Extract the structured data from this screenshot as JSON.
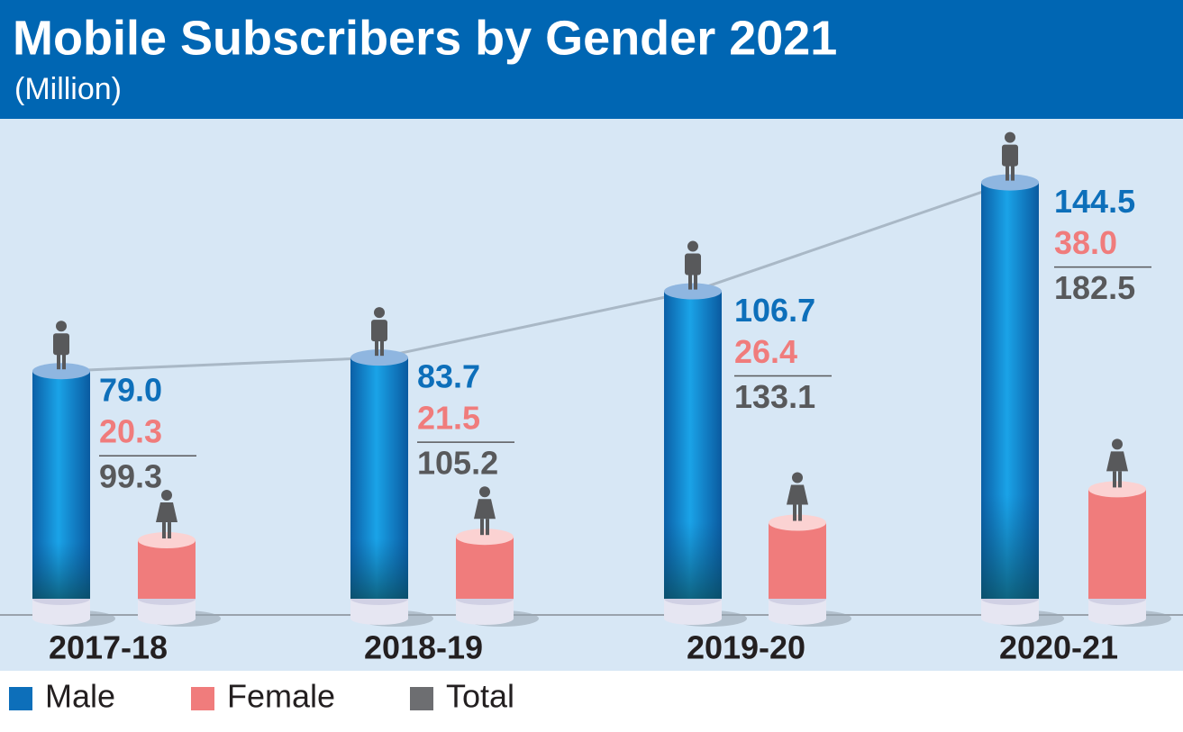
{
  "chart_data": {
    "type": "bar",
    "title": "Mobile Subscribers by Gender 2021",
    "subtitle": "(Million)",
    "categories": [
      "2017-18",
      "2018-19",
      "2019-20",
      "2020-21"
    ],
    "series": [
      {
        "name": "Male",
        "color": "#0d6fba",
        "values": [
          79.0,
          83.7,
          106.7,
          144.5
        ],
        "value_labels": [
          "79.0",
          "83.7",
          "106.7",
          "144.5"
        ]
      },
      {
        "name": "Female",
        "color": "#f07c7c",
        "values": [
          20.3,
          21.5,
          26.4,
          38.0
        ],
        "value_labels": [
          "20.3",
          "21.5",
          "26.4",
          "38.0"
        ]
      },
      {
        "name": "Total",
        "color": "#58595b",
        "values": [
          99.3,
          105.2,
          133.1,
          182.5
        ],
        "value_labels": [
          "99.3",
          "105.2",
          "133.1",
          "182.5"
        ]
      }
    ]
  }
}
